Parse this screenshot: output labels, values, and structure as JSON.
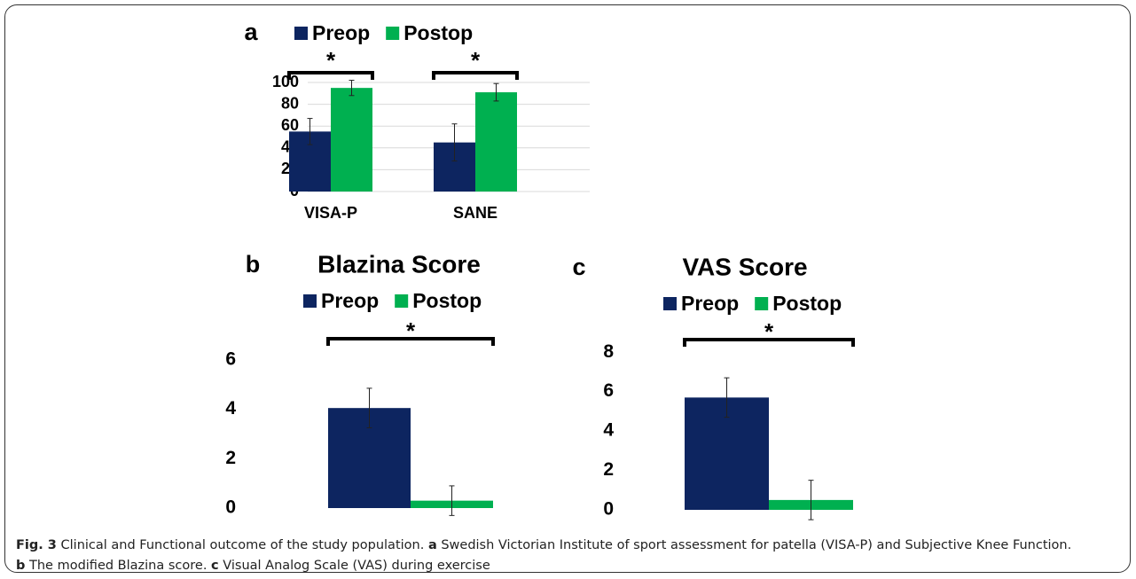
{
  "chart_data": [
    {
      "type": "bar",
      "panel": "a",
      "categories": [
        "VISA-P",
        "SANE"
      ],
      "series": [
        {
          "name": "Preop",
          "color": "#0d2560",
          "values": [
            55,
            45
          ],
          "errors": [
            12,
            17
          ]
        },
        {
          "name": "Postop",
          "color": "#00b050",
          "values": [
            95,
            91
          ],
          "errors": [
            7,
            8
          ]
        }
      ],
      "ylim": [
        0,
        100
      ],
      "yticks": [
        0,
        20,
        40,
        60,
        80,
        100
      ],
      "grid": true,
      "annotations": [
        "*",
        "*"
      ]
    },
    {
      "type": "bar",
      "panel": "b",
      "title": "Blazina Score",
      "categories": [
        null
      ],
      "series": [
        {
          "name": "Preop",
          "color": "#0d2560",
          "values": [
            4.05
          ],
          "errors": [
            0.8
          ]
        },
        {
          "name": "Postop",
          "color": "#00b050",
          "values": [
            0.3
          ],
          "errors": [
            0.6
          ]
        }
      ],
      "ylim": [
        0,
        7
      ],
      "yticks": [
        0,
        2,
        4,
        6
      ],
      "grid": false,
      "annotations": [
        "*"
      ]
    },
    {
      "type": "bar",
      "panel": "c",
      "title": "VAS Score",
      "categories": [
        null
      ],
      "series": [
        {
          "name": "Preop",
          "color": "#0d2560",
          "values": [
            5.7
          ],
          "errors": [
            1.0
          ]
        },
        {
          "name": "Postop",
          "color": "#00b050",
          "values": [
            0.5
          ],
          "errors": [
            1.0
          ]
        }
      ],
      "ylim": [
        0,
        9
      ],
      "yticks": [
        0,
        2,
        4,
        6,
        8
      ],
      "grid": false,
      "annotations": [
        "*"
      ]
    }
  ],
  "caption": [
    {
      "text": "Fig. 3",
      "bold": true
    },
    {
      "text": " Clinical and Functional outcome of the study population. ",
      "bold": false
    },
    {
      "text": "a",
      "bold": true
    },
    {
      "text": " Swedish Victorian Institute of sport assessment for patella (VISA-P) and Subjective Knee Function. ",
      "bold": false
    },
    {
      "text": "b",
      "bold": true
    },
    {
      "text": " The modified Blazina score. ",
      "bold": false
    },
    {
      "text": "c",
      "bold": true
    },
    {
      "text": " Visual Analog Scale (VAS) during exercise",
      "bold": false
    }
  ]
}
